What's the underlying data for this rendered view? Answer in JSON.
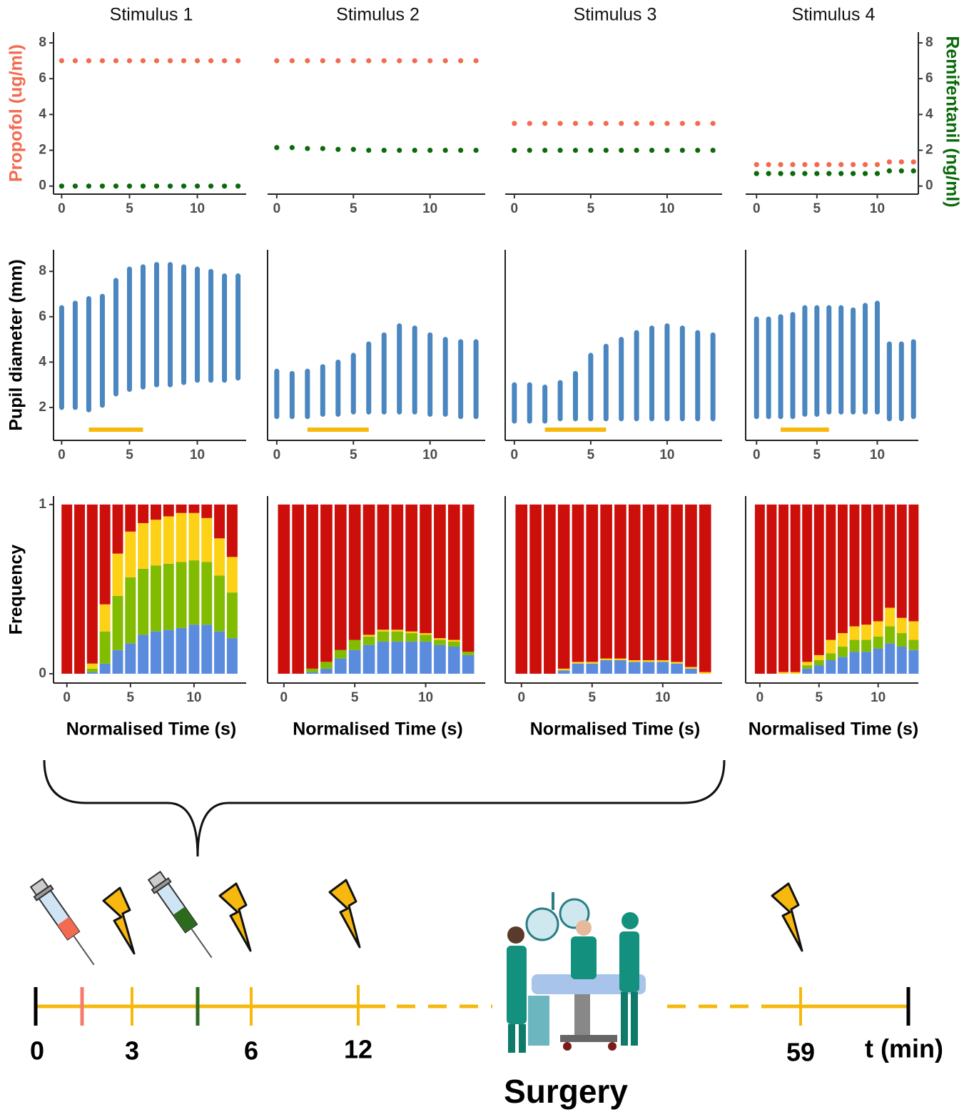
{
  "chart_data": [
    {
      "type": "scatter",
      "title": "Stimulus 1",
      "ylabel": "Propofol (ug/ml)",
      "y_axis": "left",
      "x": [
        0,
        1,
        2,
        3,
        4,
        5,
        6,
        7,
        8,
        9,
        10,
        11,
        12,
        13
      ],
      "xlim": [
        -0.6,
        13.6
      ],
      "xticks": [
        0,
        5,
        10
      ],
      "ylim": [
        -0.45,
        8.6
      ],
      "yticks": [
        0,
        2,
        4,
        6,
        8
      ],
      "label_color": "#f26b50",
      "series": [
        {
          "color": "#f26b50",
          "values": [
            7,
            7,
            7,
            7,
            7,
            7,
            7,
            7,
            7,
            7,
            7,
            7,
            7,
            7
          ]
        },
        {
          "color": "#0b6a0b",
          "values": [
            0,
            0,
            0,
            0,
            0,
            0,
            0,
            0,
            0,
            0,
            0,
            0,
            0,
            0
          ]
        }
      ]
    },
    {
      "type": "scatter",
      "title": "Stimulus 2",
      "y_axis": "none",
      "x": [
        0,
        1,
        2,
        3,
        4,
        5,
        6,
        7,
        8,
        9,
        10,
        11,
        12,
        13
      ],
      "xlim": [
        -0.6,
        13.6
      ],
      "xticks": [
        0,
        5,
        10
      ],
      "ylim": [
        -0.45,
        8.6
      ],
      "series": [
        {
          "color": "#f26b50",
          "values": [
            7,
            7,
            7,
            7,
            7,
            7,
            7,
            7,
            7,
            7,
            7,
            7,
            7,
            7
          ]
        },
        {
          "color": "#0b6a0b",
          "values": [
            2.15,
            2.15,
            2.1,
            2.1,
            2.05,
            2.05,
            2.0,
            2.0,
            2.0,
            2.0,
            2.0,
            2.0,
            2.0,
            2.0
          ]
        }
      ]
    },
    {
      "type": "scatter",
      "title": "Stimulus 3",
      "y_axis": "none",
      "x": [
        0,
        1,
        2,
        3,
        4,
        5,
        6,
        7,
        8,
        9,
        10,
        11,
        12,
        13
      ],
      "xlim": [
        -0.6,
        13.6
      ],
      "xticks": [
        0,
        5,
        10
      ],
      "ylim": [
        -0.45,
        8.6
      ],
      "series": [
        {
          "color": "#f26b50",
          "values": [
            3.5,
            3.5,
            3.5,
            3.5,
            3.5,
            3.5,
            3.5,
            3.5,
            3.5,
            3.5,
            3.5,
            3.5,
            3.5,
            3.5
          ]
        },
        {
          "color": "#0b6a0b",
          "values": [
            2,
            2,
            2,
            2,
            2,
            2,
            2,
            2,
            2,
            2,
            2,
            2,
            2,
            2
          ]
        }
      ]
    },
    {
      "type": "scatter",
      "title": "Stimulus 4",
      "y2label": "Remifentanil (ng/ml)",
      "y_axis": "right",
      "x": [
        0,
        1,
        2,
        3,
        4,
        5,
        6,
        7,
        8,
        9,
        10,
        11,
        12,
        13
      ],
      "xlim": [
        -0.9,
        13.4
      ],
      "xticks": [
        0,
        5,
        10
      ],
      "ylim": [
        -0.45,
        8.6
      ],
      "y2lim": [
        -0.45,
        8.6
      ],
      "y2ticks": [
        0,
        2,
        4,
        6,
        8
      ],
      "label_color": "#0b6a0b",
      "series": [
        {
          "color": "#f26b50",
          "values": [
            1.2,
            1.2,
            1.2,
            1.2,
            1.2,
            1.2,
            1.2,
            1.2,
            1.2,
            1.2,
            1.2,
            1.35,
            1.35,
            1.35
          ]
        },
        {
          "color": "#0b6a0b",
          "axis": "y2",
          "values": [
            0.7,
            0.7,
            0.7,
            0.7,
            0.7,
            0.7,
            0.7,
            0.7,
            0.7,
            0.7,
            0.7,
            0.85,
            0.85,
            0.85
          ]
        }
      ]
    },
    {
      "type": "range",
      "ylabel": "Pupil diameter (mm)",
      "y_axis": "left",
      "color": "#4a86bf",
      "x": [
        0,
        1,
        2,
        3,
        4,
        5,
        6,
        7,
        8,
        9,
        10,
        11,
        12,
        13
      ],
      "xlim": [
        -0.6,
        13.6
      ],
      "xticks": [
        0,
        5,
        10
      ],
      "ylim": [
        0.55,
        8.95
      ],
      "yticks": [
        2,
        4,
        6,
        8
      ],
      "low": [
        2.0,
        2.0,
        1.9,
        2.1,
        2.6,
        2.8,
        2.9,
        3.0,
        3.0,
        3.1,
        3.2,
        3.2,
        3.2,
        3.3
      ],
      "high": [
        6.4,
        6.6,
        6.8,
        6.9,
        7.6,
        8.1,
        8.2,
        8.3,
        8.3,
        8.2,
        8.1,
        8.0,
        7.8,
        7.8
      ],
      "highlight": {
        "x": [
          2,
          6
        ],
        "color": "#f5b80b"
      }
    },
    {
      "type": "range",
      "y_axis": "left",
      "color": "#4a86bf",
      "x": [
        0,
        1,
        2,
        3,
        4,
        5,
        6,
        7,
        8,
        9,
        10,
        11,
        12,
        13
      ],
      "xlim": [
        -0.6,
        13.6
      ],
      "xticks": [
        0,
        5,
        10
      ],
      "ylim": [
        0.55,
        8.95
      ],
      "low": [
        1.6,
        1.6,
        1.6,
        1.7,
        1.7,
        1.8,
        1.8,
        1.8,
        1.8,
        1.8,
        1.7,
        1.7,
        1.6,
        1.6
      ],
      "high": [
        3.6,
        3.5,
        3.6,
        3.8,
        4.0,
        4.3,
        4.8,
        5.2,
        5.6,
        5.5,
        5.2,
        5.0,
        4.9,
        4.9
      ],
      "highlight": {
        "x": [
          2,
          6
        ],
        "color": "#f5b80b"
      }
    },
    {
      "type": "range",
      "y_axis": "left",
      "color": "#4a86bf",
      "x": [
        0,
        1,
        2,
        3,
        4,
        5,
        6,
        7,
        8,
        9,
        10,
        11,
        12,
        13
      ],
      "xlim": [
        -0.6,
        13.6
      ],
      "xticks": [
        0,
        5,
        10
      ],
      "ylim": [
        0.55,
        8.95
      ],
      "low": [
        1.4,
        1.4,
        1.4,
        1.5,
        1.5,
        1.5,
        1.5,
        1.5,
        1.5,
        1.5,
        1.5,
        1.5,
        1.5,
        1.5
      ],
      "high": [
        3.0,
        3.0,
        2.9,
        3.1,
        3.5,
        4.3,
        4.7,
        5.0,
        5.3,
        5.5,
        5.6,
        5.5,
        5.3,
        5.2
      ],
      "highlight": {
        "x": [
          2,
          6
        ],
        "color": "#f5b80b"
      }
    },
    {
      "type": "range",
      "y_axis": "left",
      "color": "#4a86bf",
      "x": [
        0,
        1,
        2,
        3,
        4,
        5,
        6,
        7,
        8,
        9,
        10,
        11,
        12,
        13
      ],
      "xlim": [
        -0.9,
        13.4
      ],
      "xticks": [
        0,
        5,
        10
      ],
      "ylim": [
        0.55,
        8.95
      ],
      "low": [
        1.6,
        1.6,
        1.6,
        1.6,
        1.7,
        1.7,
        1.8,
        1.8,
        1.8,
        1.8,
        1.8,
        1.5,
        1.5,
        1.6
      ],
      "high": [
        5.9,
        5.9,
        6.0,
        6.1,
        6.4,
        6.4,
        6.4,
        6.4,
        6.3,
        6.5,
        6.6,
        4.8,
        4.8,
        4.9
      ],
      "highlight": {
        "x": [
          2,
          6
        ],
        "color": "#f5b80b"
      }
    },
    {
      "type": "stacked_bar",
      "ylabel": "Frequency",
      "xlabel": "Normalised Time (s)",
      "y_axis": "left",
      "x": [
        0,
        1,
        2,
        3,
        4,
        5,
        6,
        7,
        8,
        9,
        10,
        11,
        12,
        13
      ],
      "xlim": [
        -1.05,
        14.1
      ],
      "xticks": [
        0,
        5,
        10
      ],
      "ylim": [
        -0.055,
        1.05
      ],
      "yticks": [
        0,
        1
      ],
      "series": [
        {
          "color": "#5b8bdc",
          "values": [
            0,
            0,
            0.01,
            0.06,
            0.14,
            0.18,
            0.23,
            0.25,
            0.26,
            0.27,
            0.29,
            0.29,
            0.25,
            0.21
          ]
        },
        {
          "color": "#82bc00",
          "values": [
            0,
            0,
            0.02,
            0.19,
            0.32,
            0.39,
            0.39,
            0.39,
            0.39,
            0.39,
            0.38,
            0.37,
            0.33,
            0.27
          ]
        },
        {
          "color": "#fcd116",
          "values": [
            0,
            0,
            0.03,
            0.16,
            0.25,
            0.27,
            0.27,
            0.27,
            0.28,
            0.29,
            0.28,
            0.26,
            0.22,
            0.21
          ]
        },
        {
          "color": "#cc0f0a",
          "values": [
            1,
            1,
            0.94,
            0.59,
            0.29,
            0.16,
            0.11,
            0.09,
            0.07,
            0.05,
            0.05,
            0.08,
            0.2,
            0.31
          ]
        }
      ]
    },
    {
      "type": "stacked_bar",
      "xlabel": "Normalised Time (s)",
      "y_axis": "left",
      "x": [
        0,
        1,
        2,
        3,
        4,
        5,
        6,
        7,
        8,
        9,
        10,
        11,
        12,
        13
      ],
      "xlim": [
        -1.15,
        14.2
      ],
      "xticks": [
        0,
        5,
        10
      ],
      "ylim": [
        -0.055,
        1.05
      ],
      "series": [
        {
          "color": "#5b8bdc",
          "values": [
            0,
            0,
            0.01,
            0.03,
            0.09,
            0.14,
            0.17,
            0.19,
            0.19,
            0.19,
            0.19,
            0.17,
            0.16,
            0.11
          ]
        },
        {
          "color": "#82bc00",
          "values": [
            0,
            0,
            0.02,
            0.04,
            0.05,
            0.06,
            0.05,
            0.06,
            0.06,
            0.05,
            0.04,
            0.03,
            0.03,
            0.02
          ]
        },
        {
          "color": "#fcd116",
          "values": [
            0,
            0,
            0,
            0,
            0,
            0,
            0.01,
            0.01,
            0.01,
            0.01,
            0.01,
            0.01,
            0.01,
            0
          ]
        },
        {
          "color": "#cc0f0a",
          "values": [
            1,
            1,
            0.97,
            0.93,
            0.86,
            0.8,
            0.77,
            0.74,
            0.74,
            0.75,
            0.76,
            0.79,
            0.8,
            0.87
          ]
        }
      ]
    },
    {
      "type": "stacked_bar",
      "xlabel": "Normalised Time (s)",
      "y_axis": "left",
      "x": [
        0,
        1,
        2,
        3,
        4,
        5,
        6,
        7,
        8,
        9,
        10,
        11,
        12,
        13
      ],
      "xlim": [
        -1.15,
        14.2
      ],
      "xticks": [
        0,
        5,
        10
      ],
      "ylim": [
        -0.055,
        1.05
      ],
      "series": [
        {
          "color": "#5b8bdc",
          "values": [
            0,
            0,
            0,
            0.02,
            0.06,
            0.06,
            0.08,
            0.08,
            0.07,
            0.07,
            0.07,
            0.06,
            0.03,
            0
          ]
        },
        {
          "color": "#82bc00",
          "values": [
            0,
            0,
            0,
            0,
            0,
            0,
            0,
            0,
            0,
            0,
            0,
            0,
            0,
            0
          ]
        },
        {
          "color": "#fcd116",
          "values": [
            0,
            0,
            0,
            0.01,
            0.01,
            0.01,
            0.01,
            0.01,
            0.01,
            0.01,
            0.01,
            0.01,
            0.01,
            0.01
          ]
        },
        {
          "color": "#cc0f0a",
          "values": [
            1,
            1,
            1,
            0.97,
            0.93,
            0.93,
            0.91,
            0.91,
            0.92,
            0.92,
            0.92,
            0.93,
            0.96,
            0.99
          ]
        }
      ]
    },
    {
      "type": "stacked_bar",
      "xlabel": "Normalised Time (s)",
      "y_axis": "left",
      "x": [
        0,
        1,
        2,
        3,
        4,
        5,
        6,
        7,
        8,
        9,
        10,
        11,
        12,
        13
      ],
      "xlim": [
        -1.2,
        13.4
      ],
      "xticks": [
        0,
        5,
        10
      ],
      "ylim": [
        -0.055,
        1.05
      ],
      "series": [
        {
          "color": "#5b8bdc",
          "values": [
            0,
            0,
            0,
            0,
            0.03,
            0.05,
            0.08,
            0.1,
            0.13,
            0.13,
            0.15,
            0.18,
            0.16,
            0.14
          ]
        },
        {
          "color": "#82bc00",
          "values": [
            0,
            0,
            0,
            0,
            0.02,
            0.03,
            0.04,
            0.06,
            0.07,
            0.07,
            0.07,
            0.1,
            0.08,
            0.06
          ]
        },
        {
          "color": "#fcd116",
          "values": [
            0,
            0,
            0.01,
            0.01,
            0.02,
            0.03,
            0.08,
            0.08,
            0.08,
            0.09,
            0.09,
            0.11,
            0.09,
            0.11
          ]
        },
        {
          "color": "#cc0f0a",
          "values": [
            1,
            1,
            0.99,
            0.99,
            0.93,
            0.89,
            0.8,
            0.76,
            0.72,
            0.71,
            0.69,
            0.61,
            0.67,
            0.69
          ]
        }
      ]
    }
  ],
  "timeline": {
    "ticks": [
      0,
      3,
      6,
      12,
      59
    ],
    "unit_label": "t (min)",
    "event": "Surgery"
  }
}
